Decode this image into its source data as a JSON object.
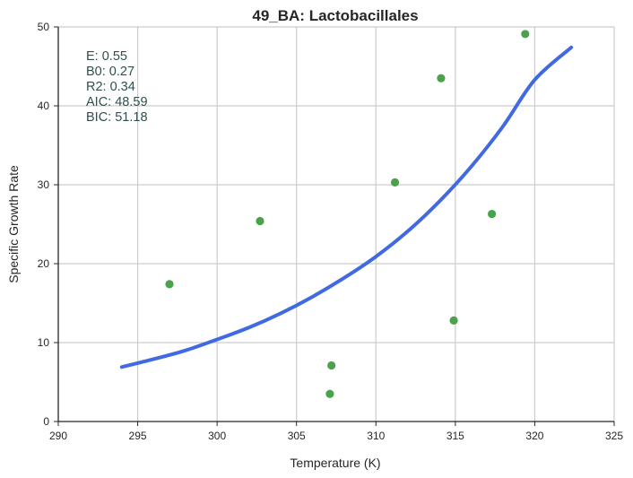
{
  "chart_data": {
    "type": "scatter",
    "title": "49_BA: Lactobacillales",
    "xlabel": "Temperature (K)",
    "ylabel": "Specific Growth Rate",
    "xlim": [
      290,
      325
    ],
    "ylim": [
      0,
      50
    ],
    "xticks": [
      "290",
      "295",
      "300",
      "305",
      "310",
      "315",
      "320",
      "325"
    ],
    "yticks": [
      "0",
      "10",
      "20",
      "30",
      "40",
      "50"
    ],
    "grid": true,
    "series": [
      {
        "kind": "points",
        "color": "#4aa34a",
        "points": [
          {
            "x": 297.0,
            "y": 17.4
          },
          {
            "x": 302.7,
            "y": 25.4
          },
          {
            "x": 307.1,
            "y": 3.5
          },
          {
            "x": 307.2,
            "y": 7.1
          },
          {
            "x": 311.2,
            "y": 30.3
          },
          {
            "x": 314.1,
            "y": 43.5
          },
          {
            "x": 314.9,
            "y": 12.8
          },
          {
            "x": 317.3,
            "y": 26.3
          },
          {
            "x": 319.4,
            "y": 49.1
          }
        ]
      },
      {
        "kind": "fit-curve",
        "color": "#4169e1",
        "points": [
          {
            "x": 294.0,
            "y": 6.9
          },
          {
            "x": 296.0,
            "y": 7.9
          },
          {
            "x": 298.0,
            "y": 9.0
          },
          {
            "x": 300.0,
            "y": 10.4
          },
          {
            "x": 302.0,
            "y": 11.9
          },
          {
            "x": 304.0,
            "y": 13.7
          },
          {
            "x": 306.0,
            "y": 15.8
          },
          {
            "x": 308.0,
            "y": 18.2
          },
          {
            "x": 310.0,
            "y": 20.9
          },
          {
            "x": 312.0,
            "y": 24.1
          },
          {
            "x": 314.0,
            "y": 27.9
          },
          {
            "x": 316.0,
            "y": 32.3
          },
          {
            "x": 318.0,
            "y": 37.4
          },
          {
            "x": 320.0,
            "y": 43.3
          },
          {
            "x": 322.3,
            "y": 47.4
          }
        ]
      }
    ],
    "annotations": [
      "E:  0.55",
      "B0:  0.27",
      "R2:  0.34",
      "AIC: 48.59",
      "BIC: 51.18"
    ]
  }
}
